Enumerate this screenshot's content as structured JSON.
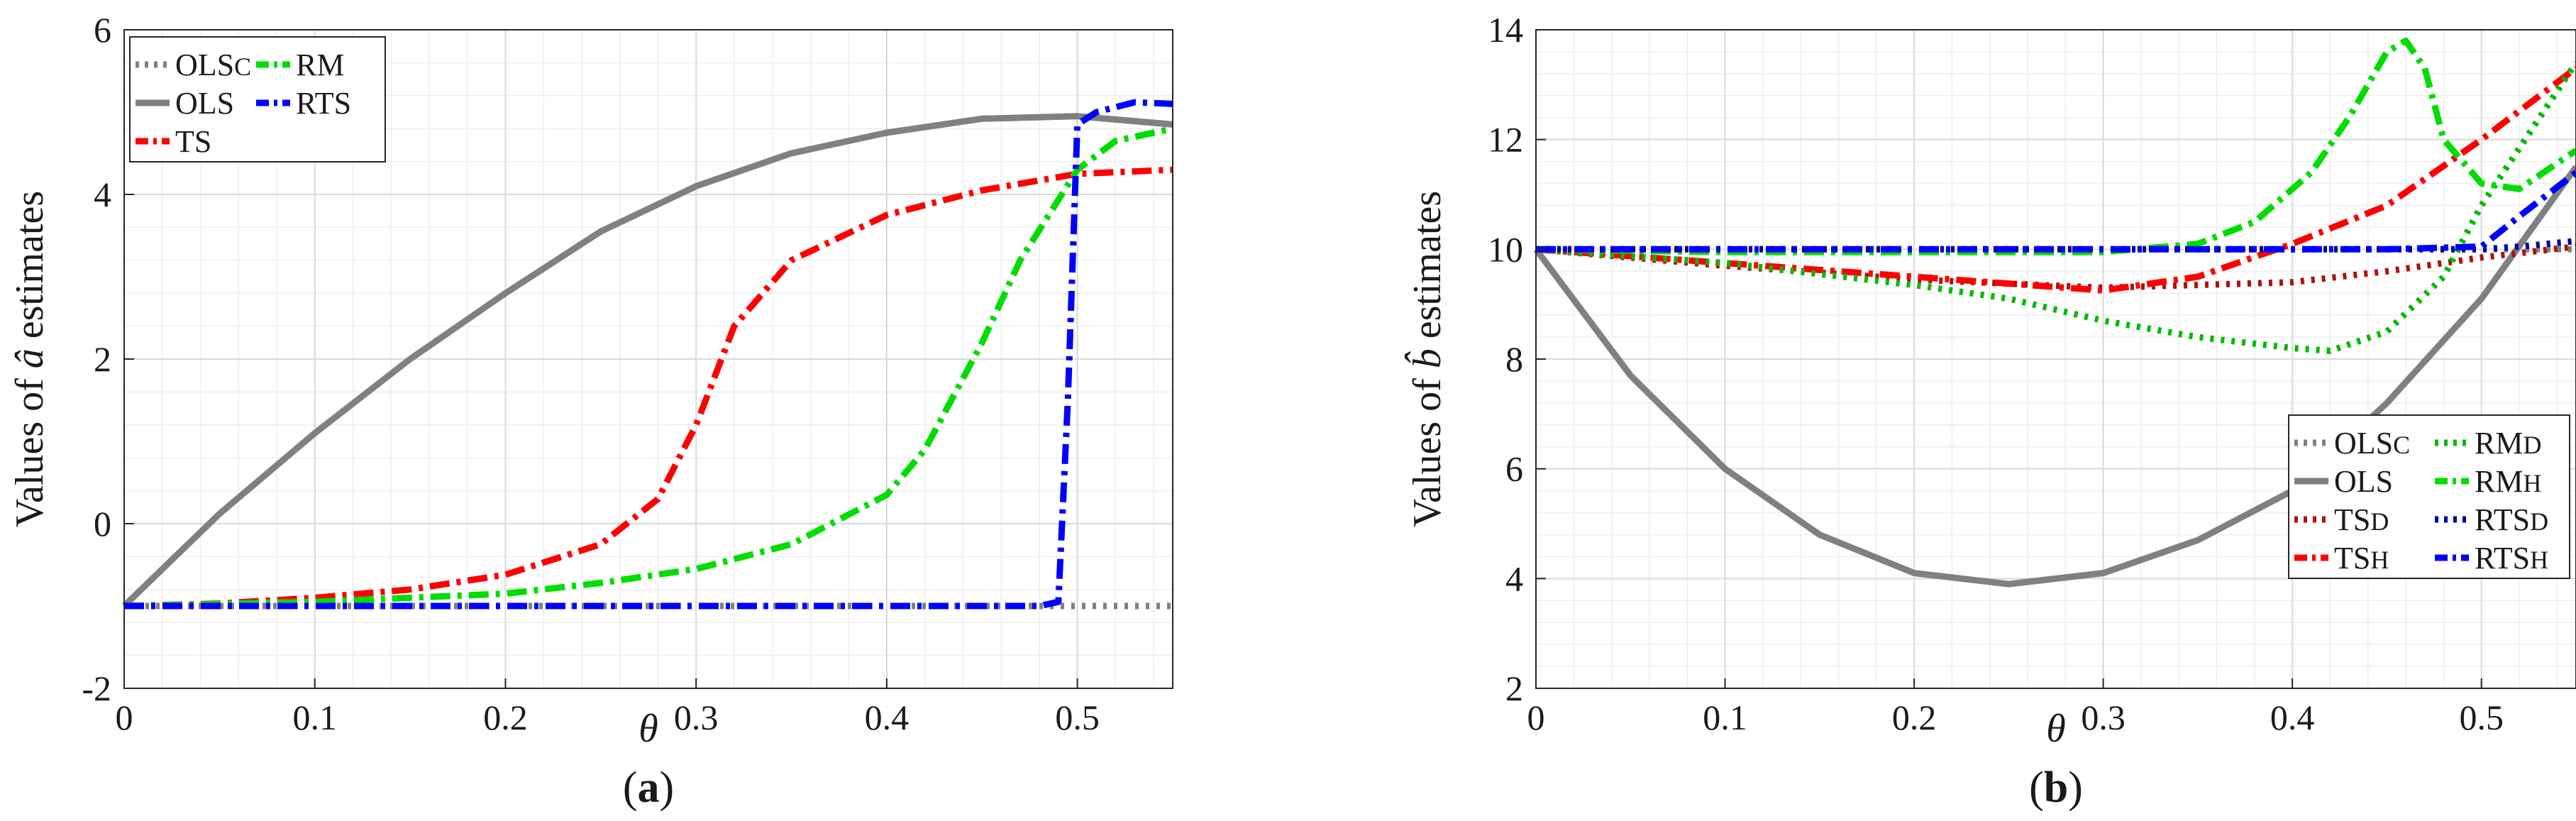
{
  "chart_data": [
    {
      "type": "line",
      "panel": "a",
      "caption": "(a)",
      "caption_parts": [
        "(",
        "a",
        ")"
      ],
      "xlabel": "θ",
      "ylabel": "Values of â estimates",
      "ylabel_parts": [
        "Values of ",
        "â",
        " estimates"
      ],
      "xlim": [
        0,
        0.55
      ],
      "ylim": [
        -2,
        6
      ],
      "xticks": [
        0,
        0.1,
        0.2,
        0.3,
        0.4,
        0.5
      ],
      "xtick_labels": [
        "0",
        "0.1",
        "0.2",
        "0.3",
        "0.4",
        "0.5"
      ],
      "yticks": [
        -2,
        0,
        2,
        4,
        6
      ],
      "ytick_labels": [
        "-2",
        "0",
        "2",
        "4",
        "6"
      ],
      "grid": true,
      "legend_position": "top-left",
      "legend_columns": 2,
      "series": [
        {
          "name": "OLSc",
          "label_main": "OLS",
          "label_sub": "C",
          "color": "#808080",
          "style": "dotted",
          "x": [
            0,
            0.49,
            0.5,
            0.55
          ],
          "y": [
            -1,
            -1,
            -1,
            -1
          ]
        },
        {
          "name": "OLS",
          "label_main": "OLS",
          "label_sub": "",
          "color": "#808080",
          "style": "solid",
          "x": [
            0,
            0.05,
            0.1,
            0.15,
            0.2,
            0.25,
            0.3,
            0.35,
            0.4,
            0.45,
            0.5,
            0.55
          ],
          "y": [
            -1,
            0.12,
            1.1,
            2.0,
            2.8,
            3.55,
            4.1,
            4.5,
            4.75,
            4.92,
            4.95,
            4.85
          ]
        },
        {
          "name": "TS",
          "label_main": "TS",
          "label_sub": "",
          "color": "#ff0000",
          "style": "dashdot",
          "x": [
            0,
            0.05,
            0.1,
            0.15,
            0.2,
            0.25,
            0.28,
            0.3,
            0.32,
            0.35,
            0.4,
            0.45,
            0.5,
            0.55
          ],
          "y": [
            -1,
            -0.97,
            -0.9,
            -0.8,
            -0.62,
            -0.25,
            0.3,
            1.2,
            2.4,
            3.2,
            3.75,
            4.05,
            4.25,
            4.3
          ]
        },
        {
          "name": "RM",
          "label_main": "RM",
          "label_sub": "",
          "color": "#00dd00",
          "style": "dashdot",
          "x": [
            0,
            0.1,
            0.2,
            0.25,
            0.3,
            0.35,
            0.4,
            0.42,
            0.45,
            0.47,
            0.5,
            0.52,
            0.55
          ],
          "y": [
            -1,
            -0.95,
            -0.85,
            -0.72,
            -0.55,
            -0.25,
            0.35,
            0.9,
            2.2,
            3.2,
            4.3,
            4.65,
            4.8
          ]
        },
        {
          "name": "RTS",
          "label_main": "RTS",
          "label_sub": "",
          "color": "#0000ff",
          "style": "dashdot",
          "x": [
            0,
            0.48,
            0.49,
            0.495,
            0.5,
            0.51,
            0.53,
            0.55
          ],
          "y": [
            -1,
            -1,
            -0.95,
            1.5,
            4.85,
            5.0,
            5.12,
            5.1
          ]
        }
      ]
    },
    {
      "type": "line",
      "panel": "b",
      "caption": "(b)",
      "caption_parts": [
        "(",
        "b",
        ")"
      ],
      "xlabel": "θ",
      "ylabel": "Values of b̂ estimates",
      "ylabel_parts": [
        "Values of ",
        "b̂",
        " estimates"
      ],
      "xlim": [
        0,
        0.55
      ],
      "ylim": [
        2,
        14
      ],
      "xticks": [
        0,
        0.1,
        0.2,
        0.3,
        0.4,
        0.5
      ],
      "xtick_labels": [
        "0",
        "0.1",
        "0.2",
        "0.3",
        "0.4",
        "0.5"
      ],
      "yticks": [
        2,
        4,
        6,
        8,
        10,
        12,
        14
      ],
      "ytick_labels": [
        "2",
        "4",
        "6",
        "8",
        "10",
        "12",
        "14"
      ],
      "grid": true,
      "legend_position": "bottom-right",
      "legend_columns": 2,
      "series": [
        {
          "name": "OLSc",
          "label_main": "OLS",
          "label_sub": "C",
          "color": "#808080",
          "style": "dotted",
          "x": [
            0,
            0.55
          ],
          "y": [
            10,
            10
          ]
        },
        {
          "name": "OLS",
          "label_main": "OLS",
          "label_sub": "",
          "color": "#808080",
          "style": "solid",
          "x": [
            0,
            0.05,
            0.1,
            0.15,
            0.2,
            0.25,
            0.3,
            0.35,
            0.4,
            0.45,
            0.5,
            0.55
          ],
          "y": [
            10,
            7.7,
            6.0,
            4.8,
            4.1,
            3.9,
            4.1,
            4.7,
            5.6,
            7.2,
            9.1,
            11.5
          ]
        },
        {
          "name": "TSd",
          "label_main": "TS",
          "label_sub": "D",
          "color": "#b01010",
          "style": "dotted",
          "x": [
            0,
            0.1,
            0.2,
            0.3,
            0.4,
            0.45,
            0.5,
            0.55
          ],
          "y": [
            10,
            9.7,
            9.45,
            9.3,
            9.4,
            9.6,
            9.85,
            10.05
          ]
        },
        {
          "name": "TSh",
          "label_main": "TS",
          "label_sub": "H",
          "color": "#ff0000",
          "style": "dashdot",
          "x": [
            0,
            0.1,
            0.2,
            0.3,
            0.35,
            0.4,
            0.45,
            0.5,
            0.55
          ],
          "y": [
            10,
            9.75,
            9.5,
            9.25,
            9.5,
            10.1,
            10.8,
            12.0,
            13.3
          ]
        },
        {
          "name": "RMd",
          "label_main": "RM",
          "label_sub": "D",
          "color": "#00bb00",
          "style": "dotted",
          "x": [
            0,
            0.1,
            0.2,
            0.25,
            0.3,
            0.35,
            0.4,
            0.42,
            0.45,
            0.48,
            0.5,
            0.55
          ],
          "y": [
            10,
            9.75,
            9.35,
            9.1,
            8.7,
            8.4,
            8.2,
            8.15,
            8.5,
            9.5,
            10.8,
            13.4
          ]
        },
        {
          "name": "RMh",
          "label_main": "RM",
          "label_sub": "H",
          "color": "#00dd00",
          "style": "dashdot",
          "x": [
            0,
            0.1,
            0.2,
            0.3,
            0.35,
            0.38,
            0.41,
            0.43,
            0.45,
            0.46,
            0.47,
            0.48,
            0.5,
            0.52,
            0.55
          ],
          "y": [
            10,
            9.95,
            9.95,
            9.95,
            10.1,
            10.5,
            11.4,
            12.4,
            13.6,
            13.8,
            13.3,
            12.0,
            11.2,
            11.1,
            11.8
          ]
        },
        {
          "name": "RTSd",
          "label_main": "RTS",
          "label_sub": "D",
          "color": "#000099",
          "style": "dotted",
          "x": [
            0,
            0.5,
            0.52,
            0.55
          ],
          "y": [
            10,
            10,
            10.05,
            10.15
          ]
        },
        {
          "name": "RTSh",
          "label_main": "RTS",
          "label_sub": "H",
          "color": "#0000ff",
          "style": "dashdot",
          "x": [
            0,
            0.45,
            0.5,
            0.52,
            0.55
          ],
          "y": [
            10,
            10,
            10.05,
            10.6,
            11.4
          ]
        }
      ]
    }
  ]
}
